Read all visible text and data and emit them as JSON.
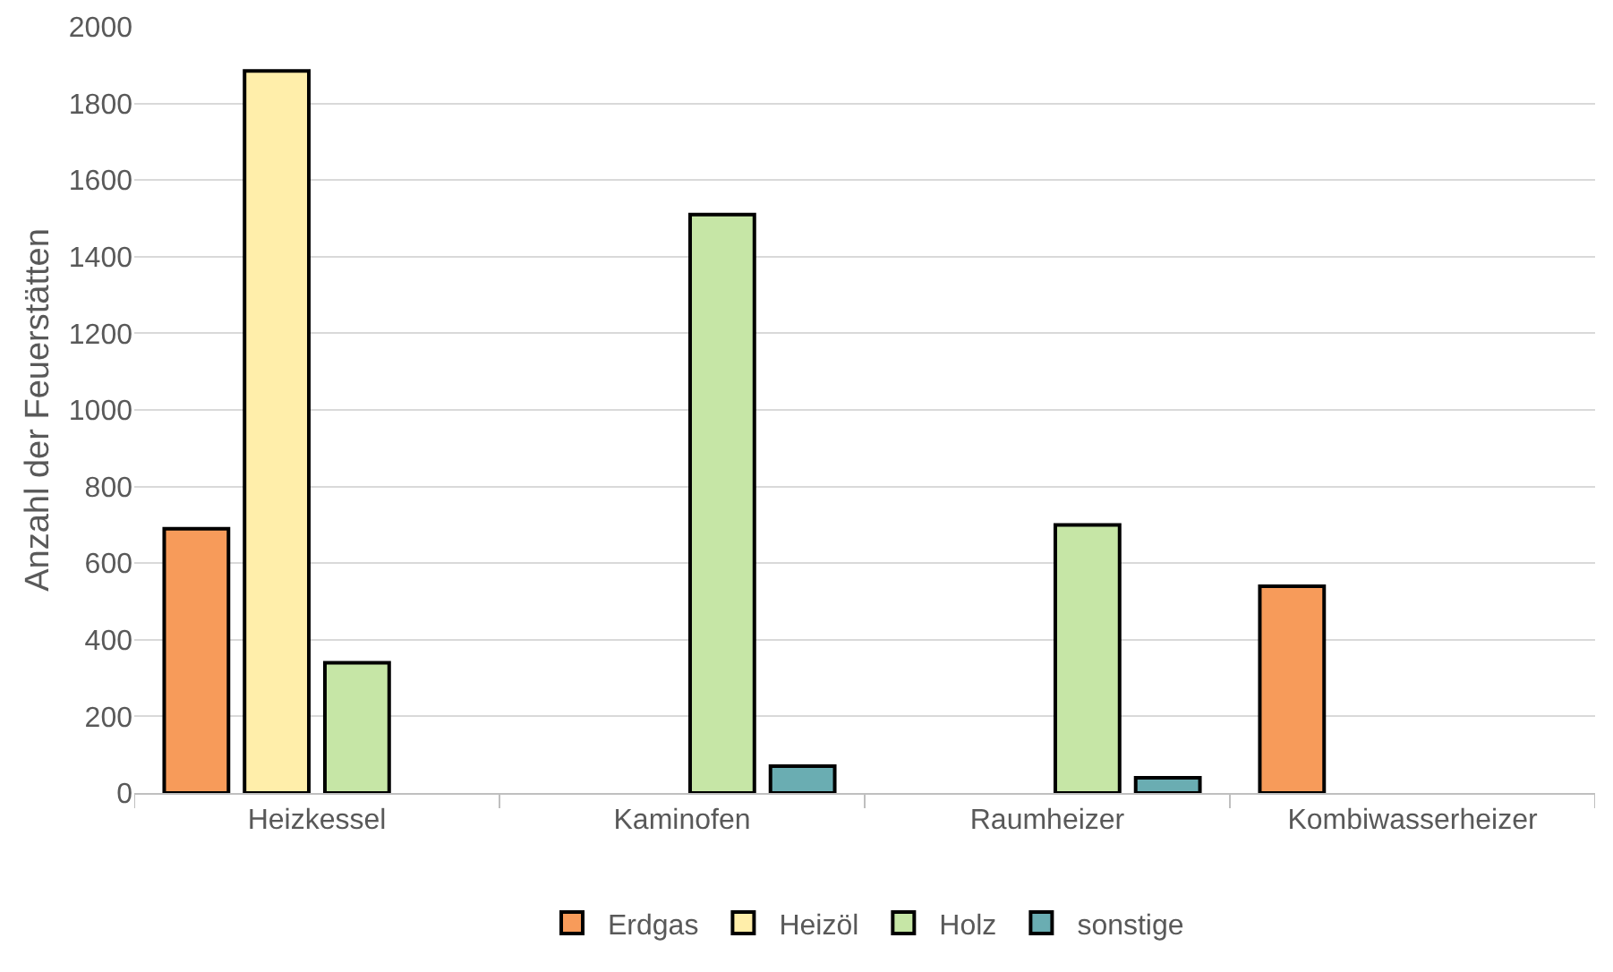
{
  "chart_data": {
    "type": "bar",
    "ylabel": "Anzahl der Feuerstätten",
    "categories": [
      "Heizkessel",
      "Kaminofen",
      "Raumheizer",
      "Kombiwasserheizer"
    ],
    "series": [
      {
        "name": "Erdgas",
        "color": "#f79b5a",
        "values": [
          690,
          null,
          null,
          540
        ]
      },
      {
        "name": "Heizöl",
        "color": "#ffeeaa",
        "values": [
          1885,
          null,
          null,
          null
        ]
      },
      {
        "name": "Holz",
        "color": "#c6e6a6",
        "values": [
          340,
          1510,
          700,
          null
        ]
      },
      {
        "name": "sonstige",
        "color": "#6aadb2",
        "values": [
          null,
          70,
          40,
          null
        ]
      }
    ],
    "ylim": [
      0,
      2000
    ],
    "yticks": [
      0,
      200,
      400,
      600,
      800,
      1000,
      1200,
      1400,
      1600,
      1800,
      2000
    ],
    "grid": "y",
    "legend": "bottom"
  }
}
